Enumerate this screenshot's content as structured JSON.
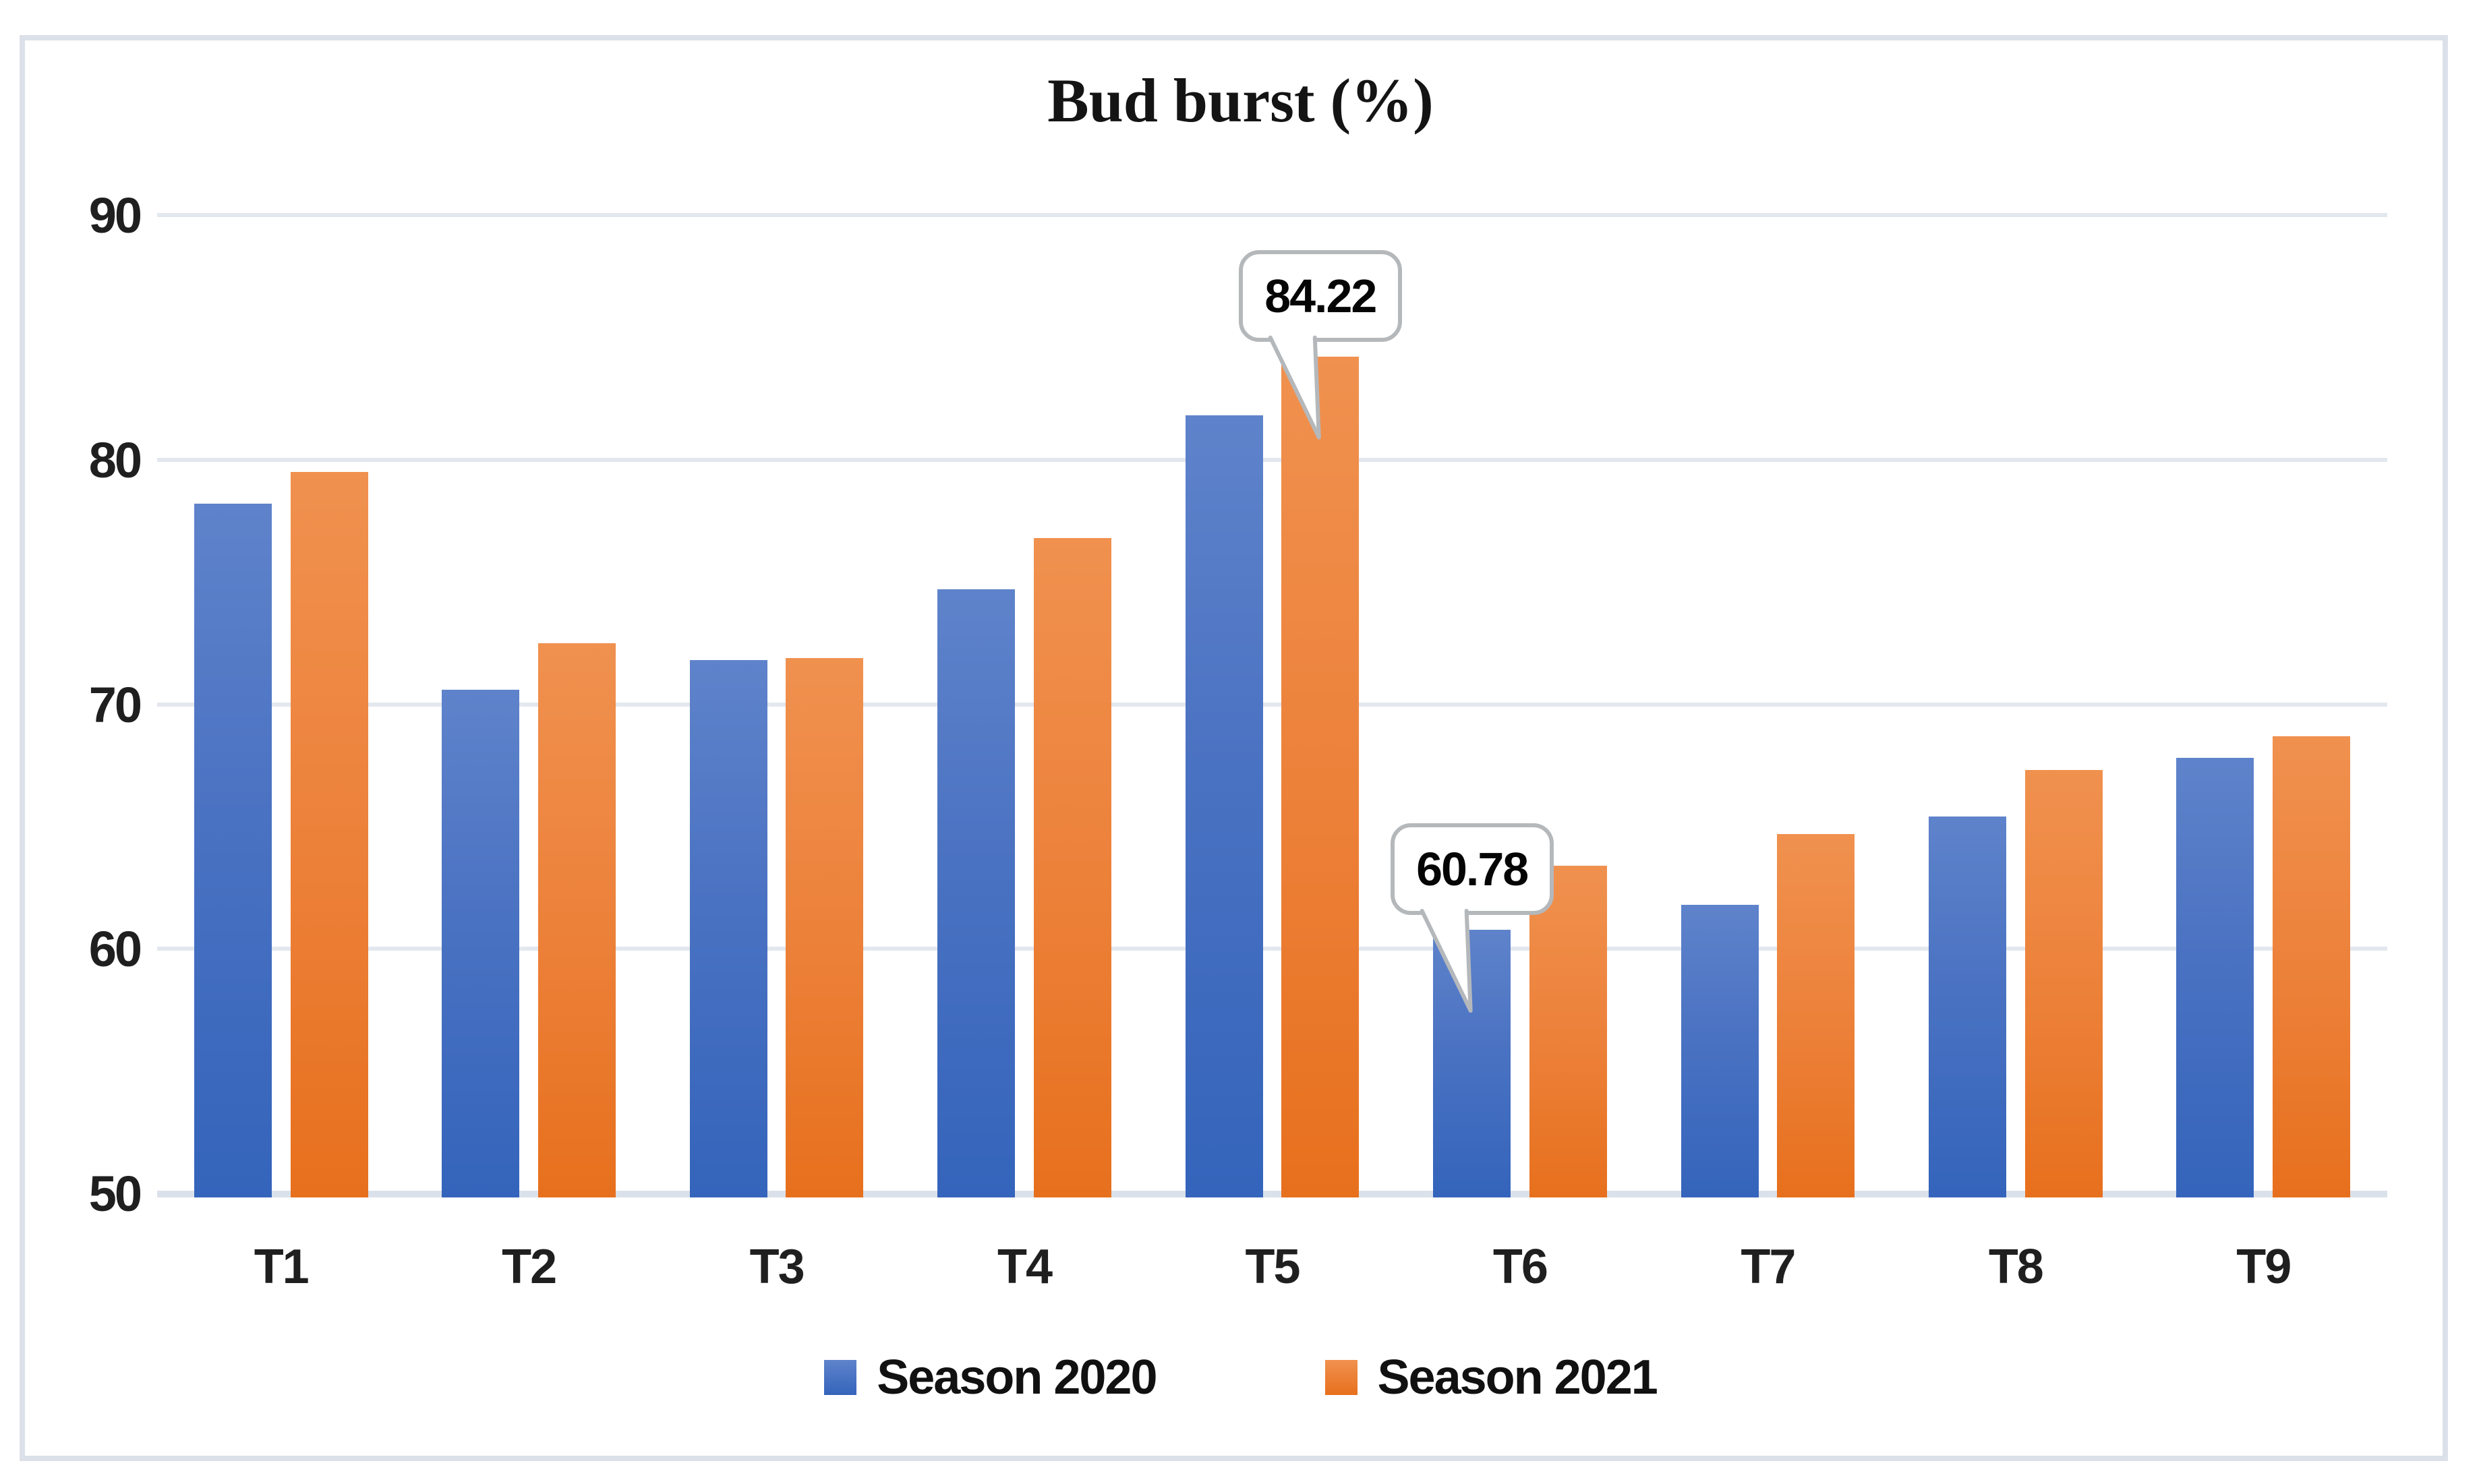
{
  "chart_data": {
    "type": "bar",
    "title": "Bud burst (%)",
    "categories": [
      "T1",
      "T2",
      "T3",
      "T4",
      "T5",
      "T6",
      "T7",
      "T8",
      "T9"
    ],
    "series": [
      {
        "name": "Season 2020",
        "color": "#4472c4",
        "values": [
          78.2,
          70.6,
          71.8,
          74.7,
          81.8,
          60.78,
          61.8,
          65.4,
          67.8
        ]
      },
      {
        "name": "Season 2021",
        "color": "#ed7d31",
        "values": [
          79.5,
          72.5,
          71.9,
          76.8,
          84.22,
          63.4,
          64.7,
          67.3,
          68.7
        ]
      }
    ],
    "ylim": [
      50,
      90
    ],
    "yticks": [
      90,
      80,
      70,
      60,
      50
    ],
    "xlabel": "",
    "ylabel": "",
    "grid": "horizontal",
    "legend_position": "bottom",
    "callouts": [
      {
        "series_index": 1,
        "category_index": 4,
        "label": "84.22"
      },
      {
        "series_index": 0,
        "category_index": 5,
        "label": "60.78"
      }
    ]
  },
  "colors": {
    "blue_top": "#5f83cb",
    "blue_bottom": "#3464bb",
    "orange_top": "#f0914f",
    "orange_bottom": "#e7701d",
    "gridline": "#e3e7ee",
    "frame_border": "#dce1e9",
    "callout_border": "#b5b8bb"
  }
}
